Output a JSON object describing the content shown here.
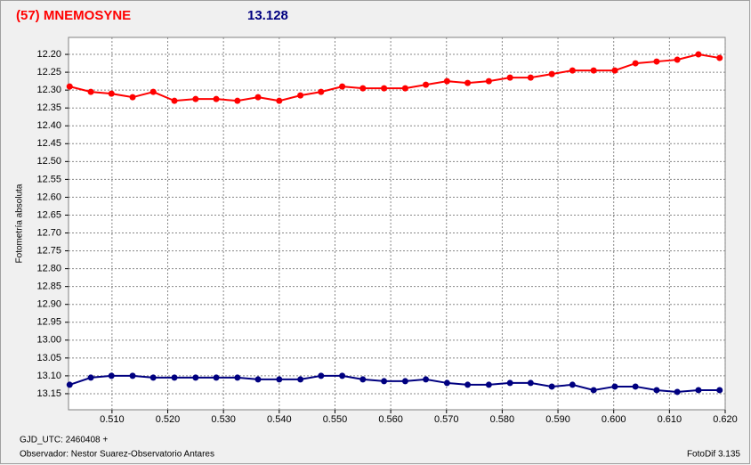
{
  "chart_data": {
    "type": "line",
    "title": "(57) MNEMOSYNE",
    "subtitle": "13.128",
    "ylabel": "Fotometría absoluta",
    "xlabel": "GJD_UTC: 2460408 +",
    "observer": "Observador: Nestor Suarez-Observatorio Antares",
    "software": "FotoDif 3.135",
    "x": [
      0.5024,
      0.5062,
      0.5099,
      0.5137,
      0.5174,
      0.5212,
      0.525,
      0.5287,
      0.5325,
      0.5362,
      0.54,
      0.5438,
      0.5475,
      0.5513,
      0.555,
      0.5588,
      0.5626,
      0.5663,
      0.5701,
      0.5738,
      0.5776,
      0.5814,
      0.5851,
      0.5889,
      0.5926,
      0.5964,
      0.6002,
      0.6039,
      0.6077,
      0.6114,
      0.6152,
      0.619
    ],
    "series": [
      {
        "color": "#ff0000",
        "values": [
          12.29,
          12.305,
          12.31,
          12.32,
          12.305,
          12.33,
          12.325,
          12.325,
          12.33,
          12.32,
          12.33,
          12.315,
          12.305,
          12.29,
          12.295,
          12.295,
          12.295,
          12.285,
          12.275,
          12.28,
          12.275,
          12.265,
          12.265,
          12.255,
          12.245,
          12.245,
          12.245,
          12.225,
          12.22,
          12.215,
          12.2,
          12.21
        ]
      },
      {
        "color": "#000080",
        "values": [
          13.125,
          13.105,
          13.1,
          13.1,
          13.105,
          13.105,
          13.105,
          13.105,
          13.105,
          13.11,
          13.11,
          13.11,
          13.1,
          13.1,
          13.11,
          13.115,
          13.115,
          13.11,
          13.12,
          13.125,
          13.125,
          13.12,
          13.12,
          13.13,
          13.125,
          13.14,
          13.13,
          13.13,
          13.14,
          13.145,
          13.14,
          13.14
        ]
      }
    ],
    "xlim": [
      0.5022,
      0.62
    ],
    "ylim": [
      13.195,
      12.1525
    ],
    "xticks": [
      {
        "value": 0.51,
        "label": "0.510"
      },
      {
        "value": 0.52,
        "label": "0.520"
      },
      {
        "value": 0.53,
        "label": "0.530"
      },
      {
        "value": 0.54,
        "label": "0.540"
      },
      {
        "value": 0.55,
        "label": "0.550"
      },
      {
        "value": 0.56,
        "label": "0.560"
      },
      {
        "value": 0.57,
        "label": "0.570"
      },
      {
        "value": 0.58,
        "label": "0.580"
      },
      {
        "value": 0.59,
        "label": "0.590"
      },
      {
        "value": 0.6,
        "label": "0.600"
      },
      {
        "value": 0.61,
        "label": "0.610"
      },
      {
        "value": 0.62,
        "label": "0.620"
      }
    ],
    "yticks": [
      {
        "value": 12.2,
        "label": "12.20"
      },
      12.25,
      {
        "value": 12.3,
        "label": "12.30"
      },
      12.35,
      {
        "value": 12.4,
        "label": "12.40"
      },
      12.45,
      {
        "value": 12.5,
        "label": "12.50"
      },
      12.55,
      {
        "value": 12.6,
        "label": "12.60"
      },
      12.65,
      {
        "value": 12.7,
        "label": "12.70"
      },
      12.75,
      {
        "value": 12.8,
        "label": "12.80"
      },
      12.85,
      {
        "value": 12.9,
        "label": "12.90"
      },
      12.95,
      {
        "value": 13.0,
        "label": "13.00"
      },
      13.05,
      {
        "value": 13.1,
        "label": "13.10"
      },
      13.15
    ],
    "grid": true
  }
}
